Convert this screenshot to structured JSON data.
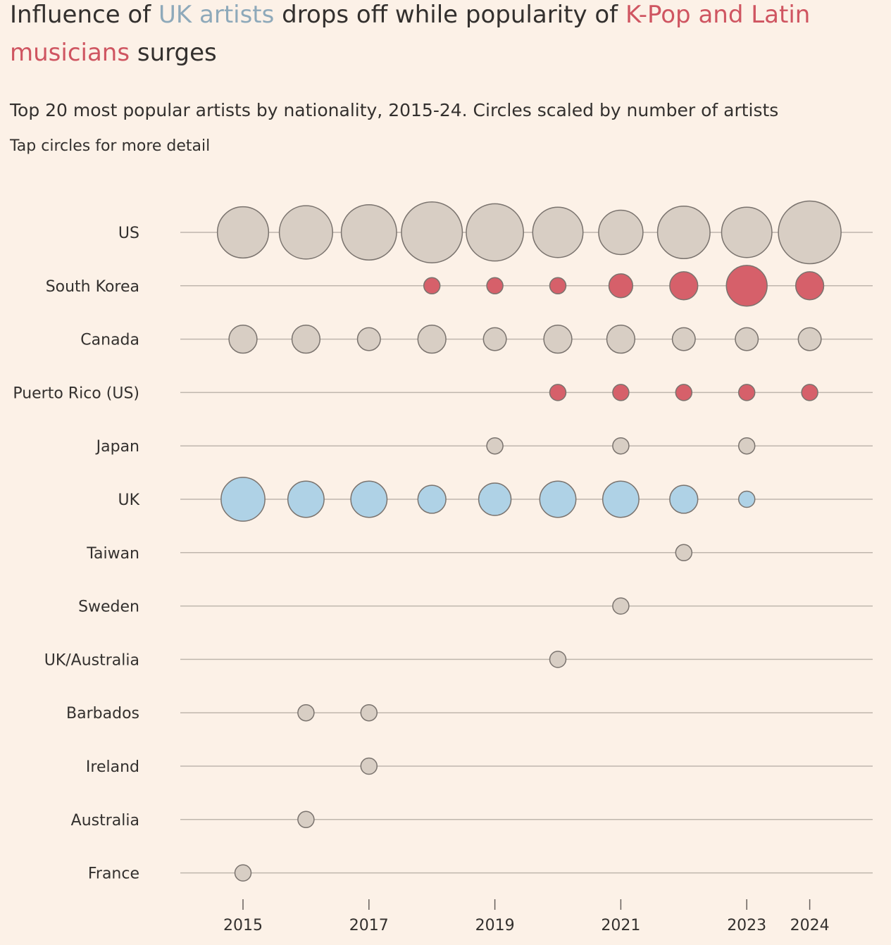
{
  "title": {
    "part1": "Influence of ",
    "part2": "UK artists",
    "part3": " drops off while popularity of ",
    "part4": "K-Pop and Latin musicians",
    "part5": " surges"
  },
  "subtitle": "Top 20 most popular artists by nationality, 2015-24. Circles scaled by number of artists",
  "note": "Tap circles for more detail",
  "colors": {
    "background": "#fcf1e7",
    "neutral": "#d8cec4",
    "uk": "#afd2e6",
    "highlight": "#d6606a",
    "stroke": "#7a736e",
    "gridline": "#bfb6ad",
    "title_uk": "#8ea9ba",
    "title_highlight": "#cf5561"
  },
  "chart_data": {
    "type": "scatter",
    "title": "Influence of UK artists drops off while popularity of K-Pop and Latin musicians surges",
    "subtitle": "Top 20 most popular artists by nationality, 2015-24. Circles scaled by number of artists",
    "x_ticks": [
      2015,
      2017,
      2019,
      2021,
      2023,
      2024
    ],
    "xlim": [
      2014,
      2025
    ],
    "size_encoding": "number of artists",
    "series": [
      {
        "name": "US",
        "color_group": "neutral",
        "x": [
          2015,
          2016,
          2017,
          2018,
          2019,
          2020,
          2021,
          2022,
          2023,
          2024
        ],
        "values": [
          6,
          6.5,
          7,
          8.5,
          7.5,
          5.8,
          4.5,
          6.3,
          5.8,
          9
        ]
      },
      {
        "name": "South Korea",
        "color_group": "highlight",
        "x": [
          2018,
          2019,
          2020,
          2021,
          2022,
          2023,
          2024
        ],
        "values": [
          0.6,
          0.6,
          0.6,
          1.3,
          1.8,
          3.8,
          1.8
        ]
      },
      {
        "name": "Canada",
        "color_group": "neutral",
        "x": [
          2015,
          2016,
          2017,
          2018,
          2019,
          2020,
          2021,
          2022,
          2023,
          2024
        ],
        "values": [
          1.8,
          1.8,
          1.2,
          1.8,
          1.2,
          1.8,
          1.8,
          1.2,
          1.2,
          1.2
        ]
      },
      {
        "name": "Puerto Rico (US)",
        "color_group": "highlight",
        "x": [
          2020,
          2021,
          2022,
          2023,
          2024
        ],
        "values": [
          0.6,
          0.6,
          0.6,
          0.6,
          0.6
        ]
      },
      {
        "name": "Japan",
        "color_group": "neutral",
        "x": [
          2019,
          2021,
          2023
        ],
        "values": [
          0.6,
          0.6,
          0.6
        ]
      },
      {
        "name": "UK",
        "color_group": "uk",
        "x": [
          2015,
          2016,
          2017,
          2018,
          2019,
          2020,
          2021,
          2022,
          2023
        ],
        "values": [
          4.4,
          3,
          3,
          1.8,
          2.4,
          3,
          3,
          1.8,
          0.6
        ]
      },
      {
        "name": "Taiwan",
        "color_group": "neutral",
        "x": [
          2022
        ],
        "values": [
          0.6
        ]
      },
      {
        "name": "Sweden",
        "color_group": "neutral",
        "x": [
          2021
        ],
        "values": [
          0.6
        ]
      },
      {
        "name": "UK/Australia",
        "color_group": "neutral",
        "x": [
          2020
        ],
        "values": [
          0.6
        ]
      },
      {
        "name": "Barbados",
        "color_group": "neutral",
        "x": [
          2016,
          2017
        ],
        "values": [
          0.6,
          0.6
        ]
      },
      {
        "name": "Ireland",
        "color_group": "neutral",
        "x": [
          2017
        ],
        "values": [
          0.6
        ]
      },
      {
        "name": "Australia",
        "color_group": "neutral",
        "x": [
          2016
        ],
        "values": [
          0.6
        ]
      },
      {
        "name": "France",
        "color_group": "neutral",
        "x": [
          2015
        ],
        "values": [
          0.6
        ]
      }
    ]
  }
}
